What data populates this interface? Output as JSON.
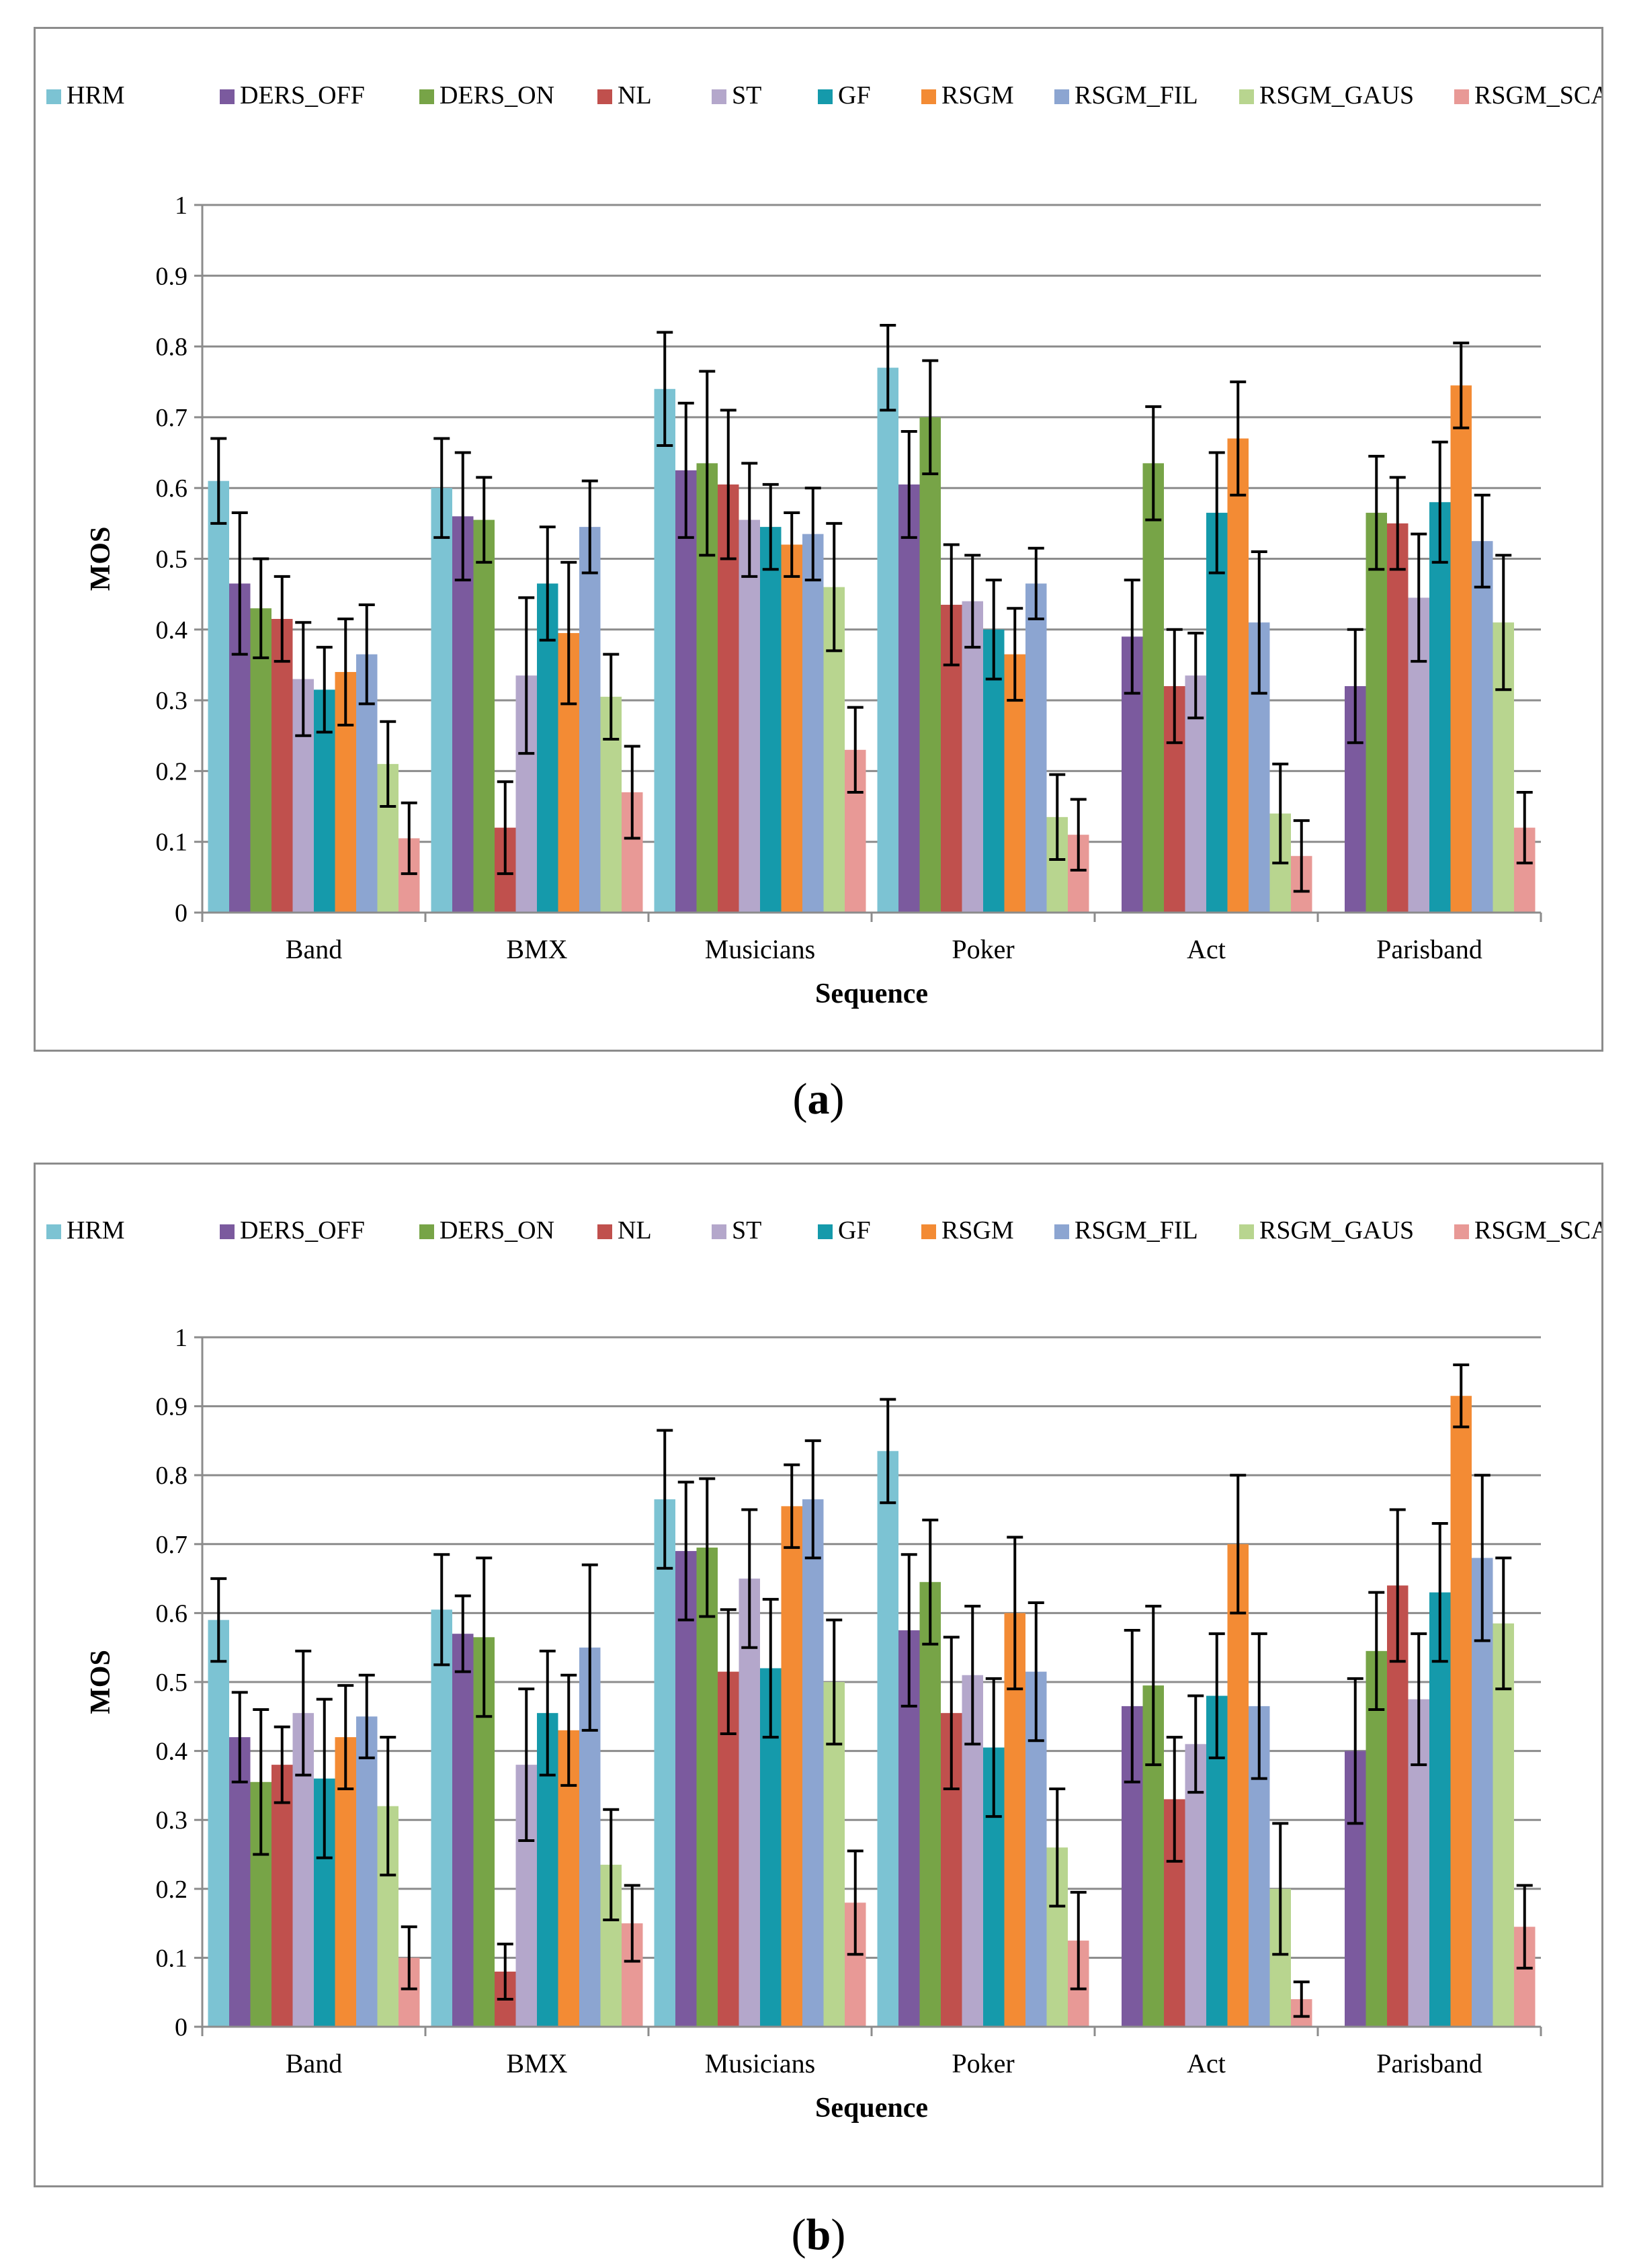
{
  "charts": {
    "a": {
      "caption_letter": "a"
    },
    "b": {
      "caption_letter": "b"
    }
  },
  "chart_data": [
    {
      "type": "bar",
      "panel": "a",
      "xlabel": "Sequence",
      "ylabel": "MOS",
      "ylim": [
        0,
        1
      ],
      "yticks": [
        "0",
        "0.1",
        "0.2",
        "0.3",
        "0.4",
        "0.5",
        "0.6",
        "0.7",
        "0.8",
        "0.9",
        "1"
      ],
      "grid": true,
      "legend": "top",
      "categories": [
        "Band",
        "BMX",
        "Musicians",
        "Poker",
        "Act",
        "Parisband"
      ],
      "series": [
        {
          "name": "HRM",
          "color": "#7cc3d3",
          "values": [
            0.61,
            0.6,
            0.74,
            0.77,
            0.0,
            0.0
          ],
          "errors": [
            0.06,
            0.07,
            0.08,
            0.06,
            0.0,
            0.0
          ]
        },
        {
          "name": "DERS_OFF",
          "color": "#7b5a9e",
          "values": [
            0.465,
            0.56,
            0.625,
            0.605,
            0.39,
            0.32
          ],
          "errors": [
            0.1,
            0.09,
            0.095,
            0.075,
            0.08,
            0.08
          ]
        },
        {
          "name": "DERS_ON",
          "color": "#77a447",
          "values": [
            0.43,
            0.555,
            0.635,
            0.7,
            0.635,
            0.565
          ],
          "errors": [
            0.07,
            0.06,
            0.13,
            0.08,
            0.08,
            0.08
          ]
        },
        {
          "name": "NL",
          "color": "#c0504d",
          "values": [
            0.415,
            0.12,
            0.605,
            0.435,
            0.32,
            0.55
          ],
          "errors": [
            0.06,
            0.065,
            0.105,
            0.085,
            0.08,
            0.065
          ]
        },
        {
          "name": "ST",
          "color": "#b4a7cb",
          "values": [
            0.33,
            0.335,
            0.555,
            0.44,
            0.335,
            0.445
          ],
          "errors": [
            0.08,
            0.11,
            0.08,
            0.065,
            0.06,
            0.09
          ]
        },
        {
          "name": "GF",
          "color": "#159aab",
          "values": [
            0.315,
            0.465,
            0.545,
            0.4,
            0.565,
            0.58
          ],
          "errors": [
            0.06,
            0.08,
            0.06,
            0.07,
            0.085,
            0.085
          ]
        },
        {
          "name": "RSGM",
          "color": "#f38b34",
          "values": [
            0.34,
            0.395,
            0.52,
            0.365,
            0.67,
            0.745
          ],
          "errors": [
            0.075,
            0.1,
            0.045,
            0.065,
            0.08,
            0.06
          ]
        },
        {
          "name": "RSGM_FIL",
          "color": "#8ca5d1",
          "values": [
            0.365,
            0.545,
            0.535,
            0.465,
            0.41,
            0.525
          ],
          "errors": [
            0.07,
            0.065,
            0.065,
            0.05,
            0.1,
            0.065
          ]
        },
        {
          "name": "RSGM_GAUS",
          "color": "#b8d58f",
          "values": [
            0.21,
            0.305,
            0.46,
            0.135,
            0.14,
            0.41
          ],
          "errors": [
            0.06,
            0.06,
            0.09,
            0.06,
            0.07,
            0.095
          ]
        },
        {
          "name": "RSGM_SCAN",
          "color": "#e89996",
          "values": [
            0.105,
            0.17,
            0.23,
            0.11,
            0.08,
            0.12
          ],
          "errors": [
            0.05,
            0.065,
            0.06,
            0.05,
            0.05,
            0.05
          ]
        }
      ]
    },
    {
      "type": "bar",
      "panel": "b",
      "xlabel": "Sequence",
      "ylabel": "MOS",
      "ylim": [
        0,
        1
      ],
      "yticks": [
        "0",
        "0.1",
        "0.2",
        "0.3",
        "0.4",
        "0.5",
        "0.6",
        "0.7",
        "0.8",
        "0.9",
        "1"
      ],
      "grid": true,
      "legend": "top",
      "categories": [
        "Band",
        "BMX",
        "Musicians",
        "Poker",
        "Act",
        "Parisband"
      ],
      "series": [
        {
          "name": "HRM",
          "color": "#7cc3d3",
          "values": [
            0.59,
            0.605,
            0.765,
            0.835,
            0.0,
            0.0
          ],
          "errors": [
            0.06,
            0.08,
            0.1,
            0.075,
            0.0,
            0.0
          ]
        },
        {
          "name": "DERS_OFF",
          "color": "#7b5a9e",
          "values": [
            0.42,
            0.57,
            0.69,
            0.575,
            0.465,
            0.4
          ],
          "errors": [
            0.065,
            0.055,
            0.1,
            0.11,
            0.11,
            0.105
          ]
        },
        {
          "name": "DERS_ON",
          "color": "#77a447",
          "values": [
            0.355,
            0.565,
            0.695,
            0.645,
            0.495,
            0.545
          ],
          "errors": [
            0.105,
            0.115,
            0.1,
            0.09,
            0.115,
            0.085
          ]
        },
        {
          "name": "NL",
          "color": "#c0504d",
          "values": [
            0.38,
            0.08,
            0.515,
            0.455,
            0.33,
            0.64
          ],
          "errors": [
            0.055,
            0.04,
            0.09,
            0.11,
            0.09,
            0.11
          ]
        },
        {
          "name": "ST",
          "color": "#b4a7cb",
          "values": [
            0.455,
            0.38,
            0.65,
            0.51,
            0.41,
            0.475
          ],
          "errors": [
            0.09,
            0.11,
            0.1,
            0.1,
            0.07,
            0.095
          ]
        },
        {
          "name": "GF",
          "color": "#159aab",
          "values": [
            0.36,
            0.455,
            0.52,
            0.405,
            0.48,
            0.63
          ],
          "errors": [
            0.115,
            0.09,
            0.1,
            0.1,
            0.09,
            0.1
          ]
        },
        {
          "name": "RSGM",
          "color": "#f38b34",
          "values": [
            0.42,
            0.43,
            0.755,
            0.6,
            0.7,
            0.915
          ],
          "errors": [
            0.075,
            0.08,
            0.06,
            0.11,
            0.1,
            0.045
          ]
        },
        {
          "name": "RSGM_FIL",
          "color": "#8ca5d1",
          "values": [
            0.45,
            0.55,
            0.765,
            0.515,
            0.465,
            0.68
          ],
          "errors": [
            0.06,
            0.12,
            0.085,
            0.1,
            0.105,
            0.12
          ]
        },
        {
          "name": "RSGM_GAUS",
          "color": "#b8d58f",
          "values": [
            0.32,
            0.235,
            0.5,
            0.26,
            0.2,
            0.585
          ],
          "errors": [
            0.1,
            0.08,
            0.09,
            0.085,
            0.095,
            0.095
          ]
        },
        {
          "name": "RSGM_SCAN",
          "color": "#e89996",
          "values": [
            0.1,
            0.15,
            0.18,
            0.125,
            0.04,
            0.145
          ],
          "errors": [
            0.045,
            0.055,
            0.075,
            0.07,
            0.025,
            0.06
          ]
        }
      ]
    }
  ]
}
